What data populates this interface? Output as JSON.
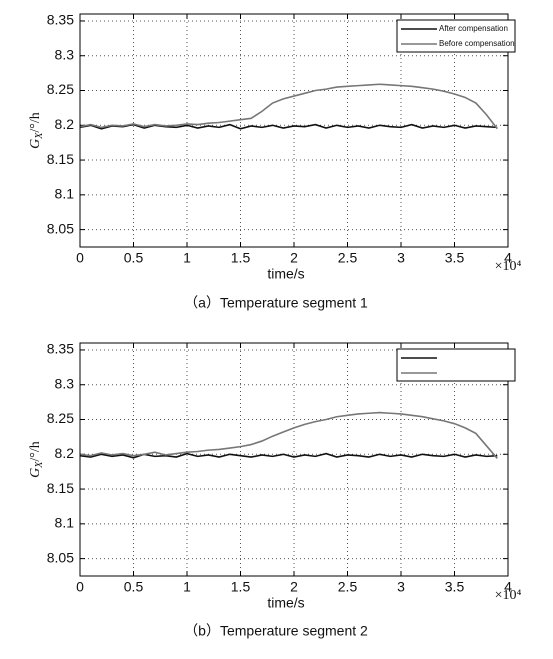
{
  "chart_data": [
    {
      "type": "line",
      "caption": "（a）Temperature segment 1",
      "xlabel": "time/s",
      "x_multiplier": "×10⁴",
      "ylabel": {
        "main": "G",
        "sub": "X",
        "unit": "/°/h"
      },
      "xlim": [
        0,
        40000
      ],
      "ylim": [
        8.025,
        8.36
      ],
      "xticks": [
        {
          "value": 0,
          "label": "0"
        },
        {
          "value": 5000,
          "label": "0.5"
        },
        {
          "value": 10000,
          "label": "1"
        },
        {
          "value": 15000,
          "label": "1.5"
        },
        {
          "value": 20000,
          "label": "2"
        },
        {
          "value": 25000,
          "label": "2.5"
        },
        {
          "value": 30000,
          "label": "3"
        },
        {
          "value": 35000,
          "label": "3.5"
        },
        {
          "value": 40000,
          "label": "4"
        }
      ],
      "yticks": [
        8.05,
        8.1,
        8.15,
        8.2,
        8.25,
        8.3,
        8.35
      ],
      "grid": true,
      "legend": "upper right",
      "x": [
        0,
        1000,
        2000,
        3000,
        4000,
        5000,
        6000,
        7000,
        8000,
        9000,
        10000,
        11000,
        12000,
        13000,
        14000,
        15000,
        16000,
        17000,
        18000,
        19000,
        20000,
        21000,
        22000,
        23000,
        24000,
        25000,
        26000,
        27000,
        28000,
        29000,
        30000,
        31000,
        32000,
        33000,
        34000,
        35000,
        36000,
        37000,
        38000,
        39000
      ],
      "series": [
        {
          "name": "After compensation",
          "color": "#111111",
          "values": [
            8.197,
            8.2,
            8.195,
            8.199,
            8.198,
            8.201,
            8.196,
            8.2,
            8.198,
            8.197,
            8.2,
            8.196,
            8.199,
            8.197,
            8.201,
            8.195,
            8.199,
            8.197,
            8.2,
            8.196,
            8.199,
            8.198,
            8.201,
            8.196,
            8.2,
            8.197,
            8.199,
            8.196,
            8.2,
            8.198,
            8.197,
            8.201,
            8.196,
            8.199,
            8.197,
            8.2,
            8.196,
            8.199,
            8.198,
            8.197
          ]
        },
        {
          "name": "Before compensation",
          "color": "#777777",
          "values": [
            8.198,
            8.201,
            8.197,
            8.2,
            8.199,
            8.202,
            8.198,
            8.201,
            8.199,
            8.2,
            8.202,
            8.201,
            8.203,
            8.204,
            8.206,
            8.208,
            8.21,
            8.22,
            8.232,
            8.238,
            8.242,
            8.246,
            8.25,
            8.252,
            8.255,
            8.256,
            8.257,
            8.258,
            8.259,
            8.258,
            8.257,
            8.256,
            8.254,
            8.252,
            8.249,
            8.245,
            8.24,
            8.232,
            8.215,
            8.195
          ]
        }
      ]
    },
    {
      "type": "line",
      "caption": "（b）Temperature segment 2",
      "xlabel": "time/s",
      "x_multiplier": "×10⁴",
      "ylabel": {
        "main": "G",
        "sub": "X",
        "unit": "/°/h"
      },
      "xlim": [
        0,
        40000
      ],
      "ylim": [
        8.025,
        8.36
      ],
      "xticks": [
        {
          "value": 0,
          "label": "0"
        },
        {
          "value": 5000,
          "label": "0.5"
        },
        {
          "value": 10000,
          "label": "1"
        },
        {
          "value": 15000,
          "label": "1.5"
        },
        {
          "value": 20000,
          "label": "2"
        },
        {
          "value": 25000,
          "label": "2.5"
        },
        {
          "value": 30000,
          "label": "3"
        },
        {
          "value": 35000,
          "label": "3.5"
        },
        {
          "value": 40000,
          "label": "4"
        }
      ],
      "yticks": [
        8.05,
        8.1,
        8.15,
        8.2,
        8.25,
        8.3,
        8.35
      ],
      "grid": true,
      "legend": "upper right",
      "x": [
        0,
        1000,
        2000,
        3000,
        4000,
        5000,
        6000,
        7000,
        8000,
        9000,
        10000,
        11000,
        12000,
        13000,
        14000,
        15000,
        16000,
        17000,
        18000,
        19000,
        20000,
        21000,
        22000,
        23000,
        24000,
        25000,
        26000,
        27000,
        28000,
        29000,
        30000,
        31000,
        32000,
        33000,
        34000,
        35000,
        36000,
        37000,
        38000,
        39000
      ],
      "series": [
        {
          "name": null,
          "color": "#111111",
          "values": [
            8.198,
            8.196,
            8.2,
            8.197,
            8.199,
            8.195,
            8.2,
            8.197,
            8.198,
            8.196,
            8.201,
            8.197,
            8.199,
            8.196,
            8.2,
            8.198,
            8.196,
            8.199,
            8.197,
            8.2,
            8.196,
            8.199,
            8.197,
            8.201,
            8.196,
            8.199,
            8.198,
            8.196,
            8.2,
            8.197,
            8.199,
            8.196,
            8.2,
            8.198,
            8.197,
            8.2,
            8.196,
            8.199,
            8.197,
            8.198
          ]
        },
        {
          "name": null,
          "color": "#777777",
          "values": [
            8.2,
            8.198,
            8.202,
            8.199,
            8.201,
            8.198,
            8.2,
            8.203,
            8.199,
            8.201,
            8.203,
            8.204,
            8.206,
            8.207,
            8.209,
            8.211,
            8.214,
            8.219,
            8.226,
            8.232,
            8.238,
            8.243,
            8.247,
            8.25,
            8.254,
            8.256,
            8.258,
            8.259,
            8.26,
            8.259,
            8.258,
            8.256,
            8.254,
            8.251,
            8.248,
            8.244,
            8.238,
            8.23,
            8.212,
            8.194
          ]
        }
      ]
    }
  ]
}
